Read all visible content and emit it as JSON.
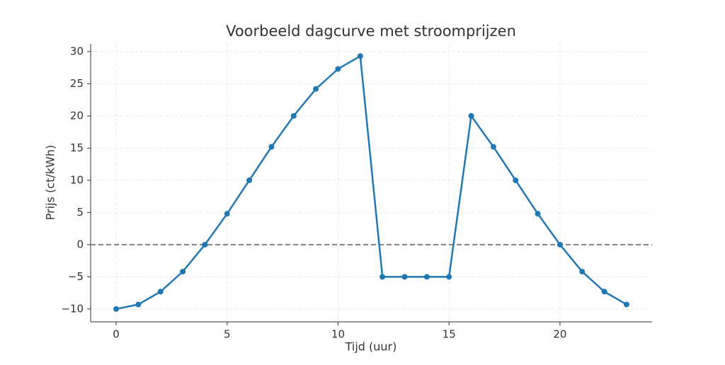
{
  "chart_data": {
    "type": "line",
    "title": "Voorbeeld dagcurve met stroomprijzen",
    "x_label": "Tijd (uur)",
    "y_label": "Prijs (ct/kWh)",
    "x": [
      0,
      1,
      2,
      3,
      4,
      5,
      6,
      7,
      8,
      9,
      10,
      11,
      12,
      13,
      14,
      15,
      16,
      17,
      18,
      19,
      20,
      21,
      22,
      23
    ],
    "series": [
      {
        "name": "Prijs",
        "color": "#1f77b4",
        "values": [
          -10,
          -9.3,
          -7.3,
          -4.2,
          0,
          4.8,
          10,
          15.2,
          20,
          24.2,
          27.3,
          29.3,
          -5,
          -5,
          -5,
          -5,
          20,
          15.2,
          10,
          4.8,
          0,
          -4.2,
          -7.3,
          -9.3
        ]
      }
    ],
    "xlim": [
      -1.15,
      24.15
    ],
    "ylim": [
      -12,
      31.2
    ],
    "xticks": [
      0,
      5,
      10,
      15,
      20
    ],
    "yticks": [
      {
        "value": -10,
        "label": "−10"
      },
      {
        "value": -5,
        "label": "−5"
      },
      0,
      5,
      10,
      15,
      20,
      25,
      30
    ],
    "grid": true,
    "hline": {
      "value": 0,
      "color": "#808080"
    }
  }
}
